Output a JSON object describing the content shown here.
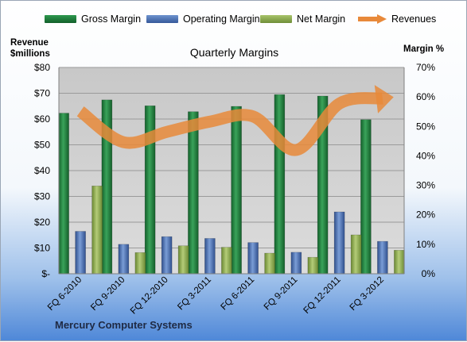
{
  "chart_data": {
    "type": "bar",
    "title": "Quarterly Margins",
    "company": "Mercury Computer Systems",
    "categories": [
      "FQ 6-2010",
      "FQ 9-2010",
      "FQ 12-2010",
      "FQ 3-2011",
      "FQ 6-2011",
      "FQ 9-2011",
      "FQ 12-2011",
      "FQ 3-2012"
    ],
    "left_axis": {
      "label_line1": "Revenue",
      "label_line2": "$millions",
      "ylim": [
        0,
        80
      ],
      "ticks": [
        "$-",
        "$10",
        "$20",
        "$30",
        "$40",
        "$50",
        "$60",
        "$70",
        "$80"
      ]
    },
    "right_axis": {
      "label": "Margin %",
      "ylim": [
        0,
        70
      ],
      "ticks": [
        "0%",
        "10%",
        "20%",
        "30%",
        "40%",
        "50%",
        "60%",
        "70%"
      ]
    },
    "series": [
      {
        "name": "Gross Margin",
        "axis": "right",
        "color": "#1f7a3a",
        "values": [
          54.5,
          59.0,
          57.0,
          55.0,
          56.8,
          60.8,
          60.3,
          52.3
        ]
      },
      {
        "name": "Operating Margin",
        "axis": "right",
        "color": "#4a72b0",
        "values": [
          14.4,
          10.0,
          12.6,
          12.0,
          10.6,
          7.3,
          21.0,
          11.0
        ]
      },
      {
        "name": "Net Margin",
        "axis": "right",
        "color": "#8eab52",
        "values": [
          29.8,
          7.2,
          9.5,
          9.0,
          7.0,
          5.6,
          13.2,
          8.0
        ]
      },
      {
        "name": "Revenues",
        "axis": "left",
        "color": "#e8893a",
        "values": [
          63,
          51,
          55,
          59,
          61,
          48,
          66,
          68
        ]
      }
    ],
    "grid": true
  }
}
